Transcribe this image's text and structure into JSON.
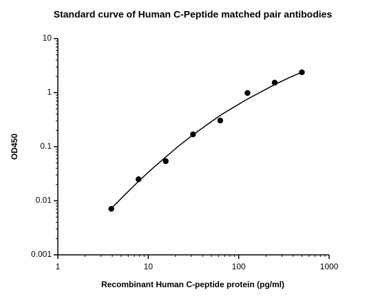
{
  "chart_data": {
    "type": "scatter",
    "title": "Standard curve of Human C-Peptide matched pair antibodies",
    "x_label": "Recombinant Human C-peptide protein (pg/ml)",
    "y_label": "OD450",
    "log_x": true,
    "log_y": true,
    "xlim": [
      1,
      1000
    ],
    "xticks": [
      1,
      10,
      100,
      1000
    ],
    "ylim": [
      0.001,
      10
    ],
    "yticks": [
      0.001,
      0.01,
      0.1,
      1,
      10
    ],
    "series": [
      {
        "style": "markers",
        "color": "#000000",
        "x": [
          3.9,
          7.8,
          15.6,
          31.25,
          62.5,
          125,
          250,
          500
        ],
        "values": [
          0.0071,
          0.025,
          0.054,
          0.169,
          0.305,
          0.986,
          1.53,
          2.38
        ]
      },
      {
        "style": "line",
        "color": "#000000",
        "x": [
          3.9,
          5.5,
          7.8,
          11,
          15.6,
          22,
          31.25,
          44,
          62.5,
          88,
          125,
          177,
          250,
          354,
          500
        ],
        "values": [
          0.0072,
          0.0129,
          0.0229,
          0.0389,
          0.0646,
          0.105,
          0.166,
          0.251,
          0.38,
          0.537,
          0.759,
          1.035,
          1.41,
          1.86,
          2.4
        ]
      }
    ]
  }
}
